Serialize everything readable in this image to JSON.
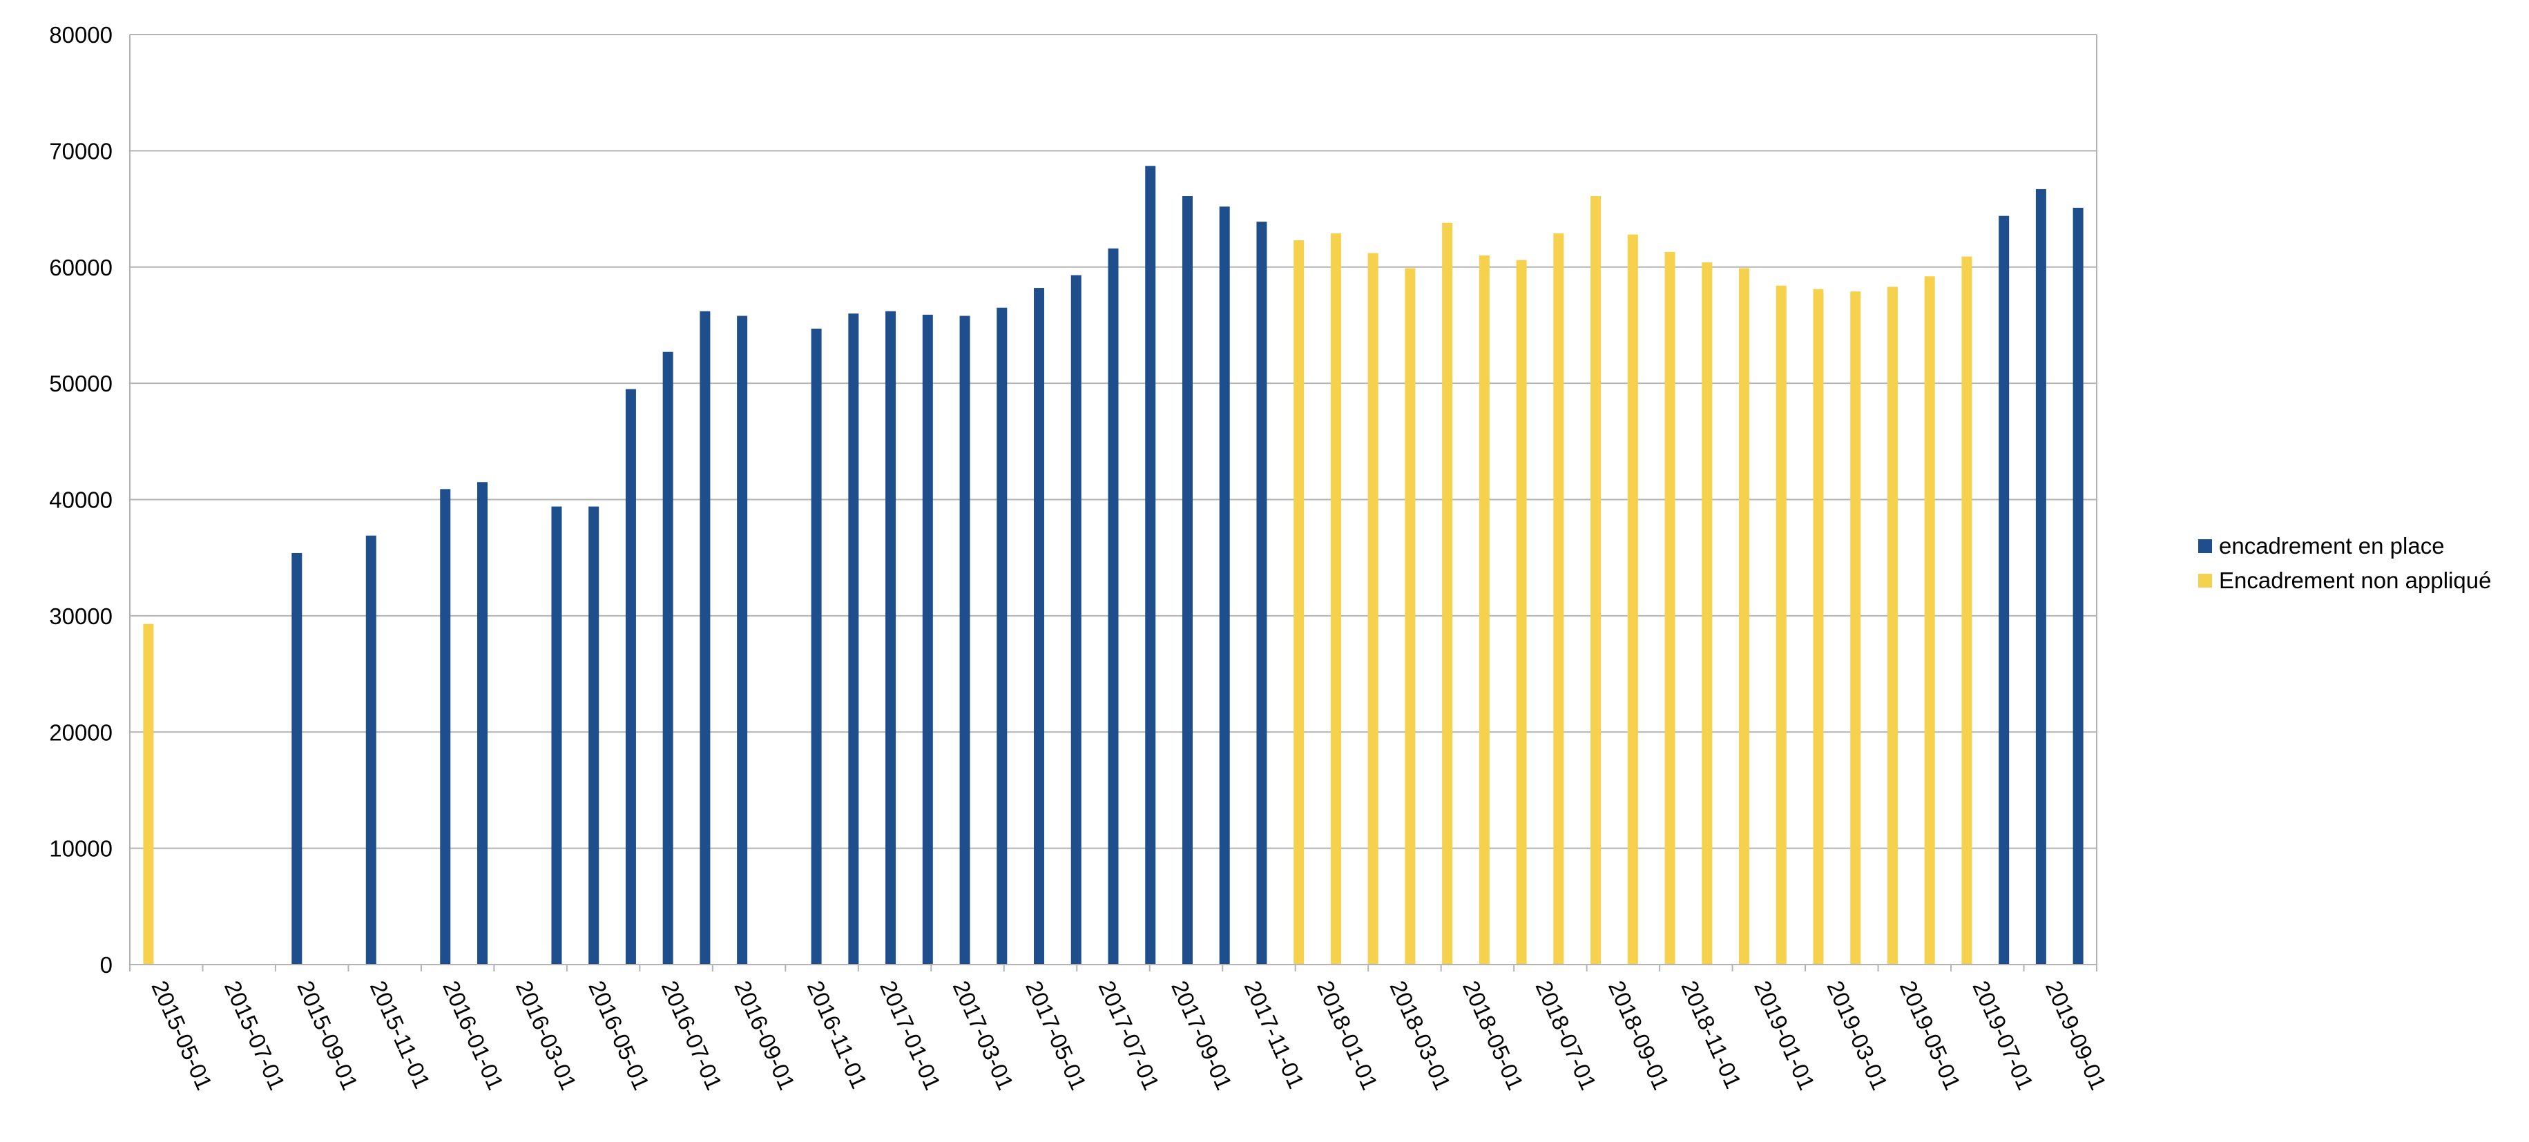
{
  "chart_data": {
    "type": "bar",
    "title": "",
    "xlabel": "",
    "ylabel": "",
    "ylim": [
      0,
      80000
    ],
    "yticks": [
      0,
      10000,
      20000,
      30000,
      40000,
      50000,
      60000,
      70000,
      80000
    ],
    "grid": true,
    "legend_position": "right",
    "x_tick_labels": [
      "2015-05-01",
      "2015-07-01",
      "2015-09-01",
      "2015-11-01",
      "2016-01-01",
      "2016-03-01",
      "2016-05-01",
      "2016-07-01",
      "2016-09-01",
      "2016-11-01",
      "2017-01-01",
      "2017-03-01",
      "2017-05-01",
      "2017-07-01",
      "2017-09-01",
      "2017-11-01",
      "2018-01-01",
      "2018-03-01",
      "2018-05-01",
      "2018-07-01",
      "2018-09-01",
      "2018-11-01",
      "2019-01-01",
      "2019-03-01",
      "2019-05-01",
      "2019-07-01",
      "2019-09-01"
    ],
    "categories": [
      "2015-05-01",
      "2015-06-01",
      "2015-07-01",
      "2015-08-01",
      "2015-09-01",
      "2015-10-01",
      "2015-11-01",
      "2015-12-01",
      "2016-01-01",
      "2016-02-01",
      "2016-03-01",
      "2016-04-01",
      "2016-05-01",
      "2016-06-01",
      "2016-07-01",
      "2016-08-01",
      "2016-09-01",
      "2016-10-01",
      "2016-11-01",
      "2016-12-01",
      "2017-01-01",
      "2017-02-01",
      "2017-03-01",
      "2017-04-01",
      "2017-05-01",
      "2017-06-01",
      "2017-07-01",
      "2017-08-01",
      "2017-09-01",
      "2017-10-01",
      "2017-11-01",
      "2017-12-01",
      "2018-01-01",
      "2018-02-01",
      "2018-03-01",
      "2018-04-01",
      "2018-05-01",
      "2018-06-01",
      "2018-07-01",
      "2018-08-01",
      "2018-09-01",
      "2018-10-01",
      "2018-11-01",
      "2018-12-01",
      "2019-01-01",
      "2019-02-01",
      "2019-03-01",
      "2019-04-01",
      "2019-05-01",
      "2019-06-01",
      "2019-07-01",
      "2019-08-01",
      "2019-09-01"
    ],
    "series": [
      {
        "name": "encadrement en place",
        "color": "#1f4e8c",
        "values": [
          null,
          null,
          null,
          null,
          35400,
          null,
          36900,
          null,
          40900,
          41500,
          null,
          39400,
          39400,
          49500,
          52700,
          56200,
          55800,
          null,
          54700,
          56000,
          56200,
          55900,
          55800,
          56500,
          58200,
          59300,
          61600,
          68700,
          66100,
          65200,
          63900,
          null,
          null,
          null,
          null,
          null,
          null,
          null,
          null,
          null,
          null,
          null,
          null,
          null,
          null,
          null,
          null,
          null,
          null,
          null,
          64400,
          66700,
          65100
        ]
      },
      {
        "name": "Encadrement non appliqué",
        "color": "#f5d14e",
        "values": [
          29300,
          null,
          null,
          null,
          null,
          null,
          null,
          null,
          null,
          null,
          null,
          null,
          null,
          null,
          null,
          null,
          null,
          null,
          null,
          null,
          null,
          null,
          null,
          null,
          null,
          null,
          null,
          null,
          null,
          null,
          null,
          62300,
          62900,
          61200,
          59900,
          63800,
          61000,
          60600,
          62900,
          66100,
          62800,
          61300,
          60400,
          59900,
          58400,
          58100,
          57900,
          58300,
          59200,
          60900,
          null,
          null,
          null
        ]
      }
    ]
  }
}
